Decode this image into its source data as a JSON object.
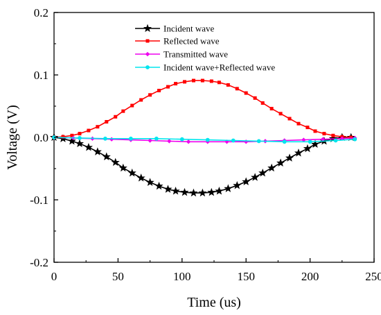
{
  "chart_data": {
    "type": "line",
    "title": "",
    "xlabel": "Time (us)",
    "ylabel": "Voltage (V)",
    "xlim": [
      0,
      250
    ],
    "ylim": [
      -0.2,
      0.2
    ],
    "xticks": [
      0,
      50,
      100,
      150,
      200,
      250
    ],
    "yticks": [
      -0.2,
      -0.1,
      0.0,
      0.1,
      0.2
    ],
    "xtick_labels": [
      "0",
      "50",
      "100",
      "150",
      "200",
      "250"
    ],
    "ytick_labels": [
      "-0.2",
      "-0.1",
      "0.0",
      "0.1",
      "0.2"
    ],
    "grid": false,
    "legend_position": "top-right",
    "series": [
      {
        "name": "Incident wave",
        "color": "#000000",
        "marker": "star",
        "x": [
          0,
          7,
          14,
          20,
          27,
          34,
          41,
          48,
          54,
          61,
          68,
          75,
          82,
          89,
          95,
          102,
          109,
          116,
          123,
          129,
          136,
          143,
          150,
          157,
          163,
          170,
          177,
          184,
          191,
          198,
          204,
          211,
          218,
          225,
          232
        ],
        "values": [
          0.0,
          -0.002,
          -0.006,
          -0.01,
          -0.016,
          -0.023,
          -0.031,
          -0.04,
          -0.049,
          -0.057,
          -0.065,
          -0.072,
          -0.078,
          -0.083,
          -0.086,
          -0.088,
          -0.089,
          -0.089,
          -0.088,
          -0.086,
          -0.082,
          -0.077,
          -0.071,
          -0.064,
          -0.057,
          -0.049,
          -0.041,
          -0.033,
          -0.025,
          -0.018,
          -0.011,
          -0.006,
          -0.002,
          0.0,
          0.0
        ]
      },
      {
        "name": "Reflected wave",
        "color": "#ff0000",
        "marker": "square",
        "x": [
          0,
          7,
          14,
          20,
          27,
          34,
          41,
          48,
          54,
          61,
          68,
          75,
          82,
          89,
          95,
          102,
          109,
          116,
          123,
          129,
          136,
          143,
          150,
          157,
          163,
          170,
          177,
          184,
          191,
          198,
          204,
          211,
          218,
          225,
          232
        ],
        "values": [
          0.0,
          0.001,
          0.003,
          0.006,
          0.011,
          0.017,
          0.025,
          0.033,
          0.042,
          0.051,
          0.06,
          0.068,
          0.075,
          0.081,
          0.086,
          0.089,
          0.091,
          0.091,
          0.09,
          0.088,
          0.084,
          0.078,
          0.071,
          0.063,
          0.055,
          0.046,
          0.038,
          0.03,
          0.022,
          0.016,
          0.01,
          0.006,
          0.003,
          0.001,
          0.0
        ]
      },
      {
        "name": "Transmitted wave",
        "color": "#ee00ee",
        "marker": "diamond",
        "x": [
          0,
          15,
          30,
          45,
          60,
          75,
          90,
          105,
          120,
          135,
          150,
          165,
          180,
          195,
          210,
          225,
          235
        ],
        "values": [
          0.0,
          -0.001,
          -0.002,
          -0.003,
          -0.004,
          -0.005,
          -0.006,
          -0.007,
          -0.007,
          -0.007,
          -0.007,
          -0.006,
          -0.005,
          -0.004,
          -0.003,
          -0.002,
          -0.001
        ]
      },
      {
        "name": "Incident wave+Reflected wave",
        "color": "#00e5ee",
        "marker": "circle",
        "x": [
          0,
          20,
          40,
          60,
          80,
          100,
          120,
          140,
          160,
          180,
          200,
          220,
          235
        ],
        "values": [
          0.0,
          -0.001,
          -0.002,
          -0.002,
          -0.002,
          -0.003,
          -0.004,
          -0.005,
          -0.006,
          -0.007,
          -0.007,
          -0.005,
          -0.003
        ]
      }
    ]
  }
}
